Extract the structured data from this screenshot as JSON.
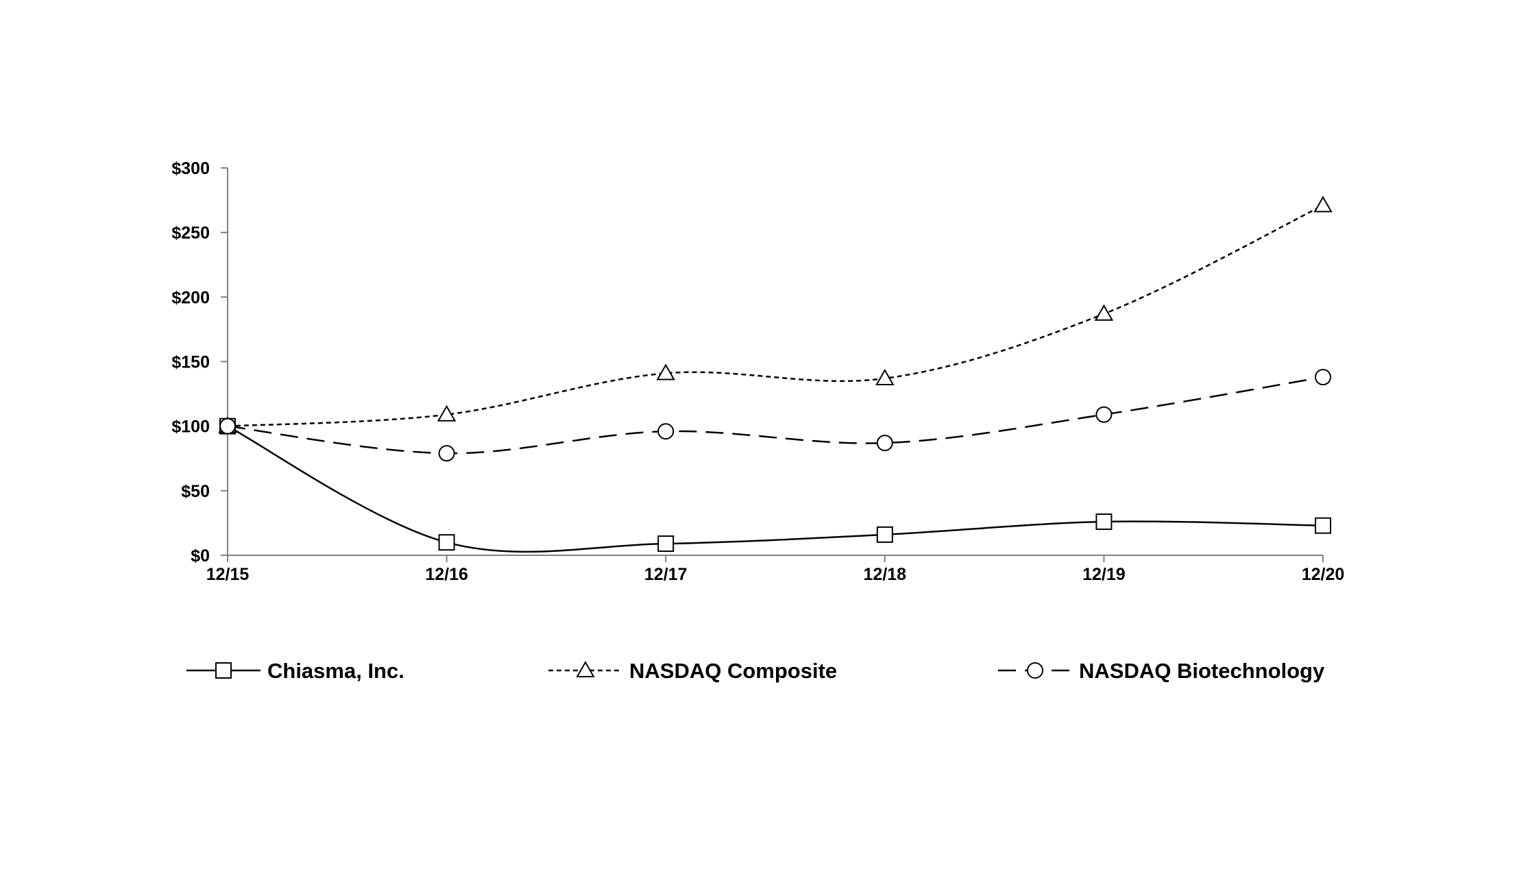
{
  "chart_data": {
    "type": "line",
    "x": [
      "12/15",
      "12/16",
      "12/17",
      "12/18",
      "12/19",
      "12/20"
    ],
    "yticks": [
      "$0",
      "$50",
      "$100",
      "$150",
      "$200",
      "$250",
      "$300"
    ],
    "ylim": [
      0,
      300
    ],
    "grid": false,
    "legend_position": "bottom",
    "series": [
      {
        "name": "Chiasma, Inc.",
        "marker": "square",
        "line_style": "solid",
        "values": [
          100,
          10,
          9,
          16,
          26,
          23
        ]
      },
      {
        "name": "NASDAQ Composite",
        "marker": "triangle",
        "line_style": "dotted",
        "values": [
          100,
          109,
          141,
          137,
          187,
          271
        ]
      },
      {
        "name": "NASDAQ Biotechnology",
        "marker": "circle",
        "line_style": "dashed",
        "values": [
          100,
          79,
          96,
          87,
          109,
          138
        ]
      }
    ]
  },
  "colors": {
    "line": "#000000",
    "axis": "#808080"
  }
}
